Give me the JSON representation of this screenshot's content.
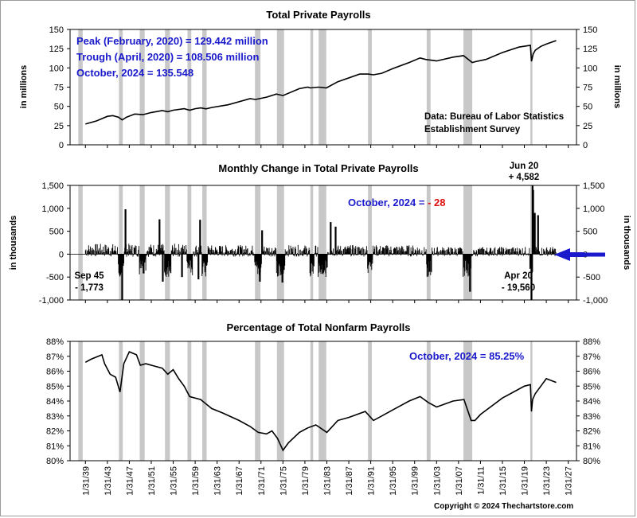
{
  "copyright": "Copyright © 2024 Thechartstore.com",
  "recession_bands": [
    [
      1937.7,
      1938.5
    ],
    [
      1945.1,
      1945.8
    ],
    [
      1948.9,
      1949.8
    ],
    [
      1953.5,
      1954.4
    ],
    [
      1957.6,
      1958.3
    ],
    [
      1960.3,
      1961.1
    ],
    [
      1969.9,
      1970.9
    ],
    [
      1973.9,
      1975.2
    ],
    [
      1980.0,
      1980.5
    ],
    [
      1981.5,
      1982.9
    ],
    [
      1990.5,
      1991.2
    ],
    [
      2001.2,
      2001.9
    ],
    [
      2007.9,
      2009.5
    ],
    [
      2020.1,
      2020.3
    ]
  ],
  "x_ticks": [
    "1/31/39",
    "1/31/43",
    "1/31/47",
    "1/31/51",
    "1/31/55",
    "1/31/59",
    "1/31/63",
    "1/31/67",
    "1/31/71",
    "1/31/75",
    "1/31/79",
    "1/31/83",
    "1/31/87",
    "1/31/91",
    "1/31/95",
    "1/31/99",
    "1/31/03",
    "1/31/07",
    "1/31/11",
    "1/31/15",
    "1/31/19",
    "1/31/23",
    "1/31/27"
  ],
  "chart_data": [
    {
      "type": "line",
      "title": "Total Private Payrolls",
      "ylabel": "in millions",
      "ylim": [
        0,
        150
      ],
      "y_ticks": [
        "0",
        "25",
        "50",
        "75",
        "100",
        "125",
        "150"
      ],
      "annotations": {
        "peak": "Peak (February, 2020) = 129.442 million",
        "trough": "Trough (April, 2020) = 108.506 million",
        "latest": "October, 2024 = 135.548",
        "source_line1": "Data:  Bureau of Labor Statistics",
        "source_line2": "Establishment Survey"
      },
      "series": [
        {
          "x": [
            1939,
            1941,
            1943,
            1944,
            1945,
            1945.7,
            1946.5,
            1948,
            1949.5,
            1951,
            1953,
            1954,
            1955,
            1957,
            1958,
            1959,
            1960,
            1961,
            1962,
            1965,
            1969,
            1970,
            1972,
            1973.8,
            1975,
            1978,
            1979.5,
            1980,
            1981.5,
            1982.9,
            1985,
            1989,
            1990.5,
            1991.5,
            1993,
            1995,
            1998,
            2000,
            2001,
            2003,
            2006,
            2007.9,
            2009.5,
            2010,
            2012,
            2015,
            2018,
            2020.1,
            2020.3,
            2020.6,
            2021,
            2022,
            2023,
            2024.8
          ],
          "y": [
            27.0,
            31,
            37,
            38,
            36,
            32.4,
            36,
            40,
            39.2,
            42,
            44.5,
            43,
            45,
            47,
            45,
            47,
            48,
            46.8,
            48.5,
            52,
            60,
            59,
            62,
            66,
            64,
            73,
            75,
            74,
            75,
            74,
            82,
            92,
            92,
            91,
            93,
            99,
            107,
            113,
            111,
            109,
            114,
            116,
            107,
            108,
            111,
            120,
            127,
            129.4,
            108.5,
            118,
            123,
            128,
            131,
            135.5
          ]
        }
      ]
    },
    {
      "type": "bar",
      "title": "Monthly Change in Total Private Payrolls",
      "ylabel": "in thousands",
      "ylim": [
        -1000,
        1500
      ],
      "y_ticks": [
        "-1,000",
        "-500",
        "0",
        "500",
        "1,000",
        "1,500"
      ],
      "annotations": {
        "latest_prefix": "October, 2024 = ",
        "latest_value": "- 28",
        "jun20_label": "Jun 20",
        "jun20_value": "+ 4,582",
        "apr20_label": "Apr 20",
        "apr20_value": "- 19,560",
        "sep45_label": "Sep 45",
        "sep45_value": "- 1,773"
      },
      "spikes": [
        {
          "x": 1945.7,
          "y": -1773
        },
        {
          "x": 1946.3,
          "y": 980
        },
        {
          "x": 1949.6,
          "y": -420
        },
        {
          "x": 1952.5,
          "y": 760
        },
        {
          "x": 1953.1,
          "y": -600
        },
        {
          "x": 1956.6,
          "y": -500
        },
        {
          "x": 1959.6,
          "y": -550
        },
        {
          "x": 1959.9,
          "y": 750
        },
        {
          "x": 1970.8,
          "y": -600
        },
        {
          "x": 1971.2,
          "y": 520
        },
        {
          "x": 1974.9,
          "y": -620
        },
        {
          "x": 1983.7,
          "y": 700
        },
        {
          "x": 1984.6,
          "y": 600
        },
        {
          "x": 2009.1,
          "y": -820
        },
        {
          "x": 2020.3,
          "y": -19560
        },
        {
          "x": 2020.5,
          "y": 4582
        },
        {
          "x": 2020.6,
          "y": 1400
        },
        {
          "x": 2020.9,
          "y": 900
        },
        {
          "x": 2021.5,
          "y": 850
        }
      ]
    },
    {
      "type": "line",
      "title": "Percentage of Total Nonfarm Payrolls",
      "ylim": [
        80,
        88
      ],
      "y_ticks": [
        "80%",
        "81%",
        "82%",
        "83%",
        "84%",
        "85%",
        "86%",
        "87%",
        "88%"
      ],
      "annotations": {
        "latest": "October, 2024 = 85.25%"
      },
      "series": [
        {
          "x": [
            1939,
            1940,
            1942,
            1942.5,
            1943.5,
            1944.5,
            1945.3,
            1946,
            1947,
            1948.3,
            1949,
            1950,
            1952,
            1953,
            1954,
            1955,
            1956,
            1957,
            1958,
            1960,
            1962,
            1964,
            1967,
            1969,
            1970.5,
            1972,
            1973,
            1974,
            1975,
            1976,
            1978,
            1979.5,
            1981,
            1983,
            1985,
            1987,
            1990,
            1991.5,
            1993,
            1995,
            1998,
            2000,
            2001.5,
            2003,
            2006,
            2008,
            2009.3,
            2010,
            2011,
            2015,
            2019,
            2020.1,
            2020.3,
            2020.5,
            2021,
            2022,
            2023,
            2024.8
          ],
          "y": [
            86.6,
            86.8,
            87.1,
            86.5,
            85.8,
            85.6,
            84.6,
            86.5,
            87.3,
            87.1,
            86.4,
            86.5,
            86.3,
            86.2,
            85.8,
            86.1,
            85.5,
            85.0,
            84.3,
            84.1,
            83.5,
            83.2,
            82.7,
            82.3,
            81.9,
            81.8,
            82.0,
            81.5,
            80.7,
            81.2,
            81.9,
            82.2,
            82.4,
            81.9,
            82.7,
            82.9,
            83.3,
            82.7,
            83.0,
            83.4,
            84.0,
            84.3,
            83.9,
            83.6,
            84.0,
            84.1,
            82.7,
            82.7,
            83.1,
            84.2,
            85.0,
            85.1,
            83.3,
            84.1,
            84.5,
            85.0,
            85.5,
            85.25
          ]
        }
      ]
    }
  ]
}
